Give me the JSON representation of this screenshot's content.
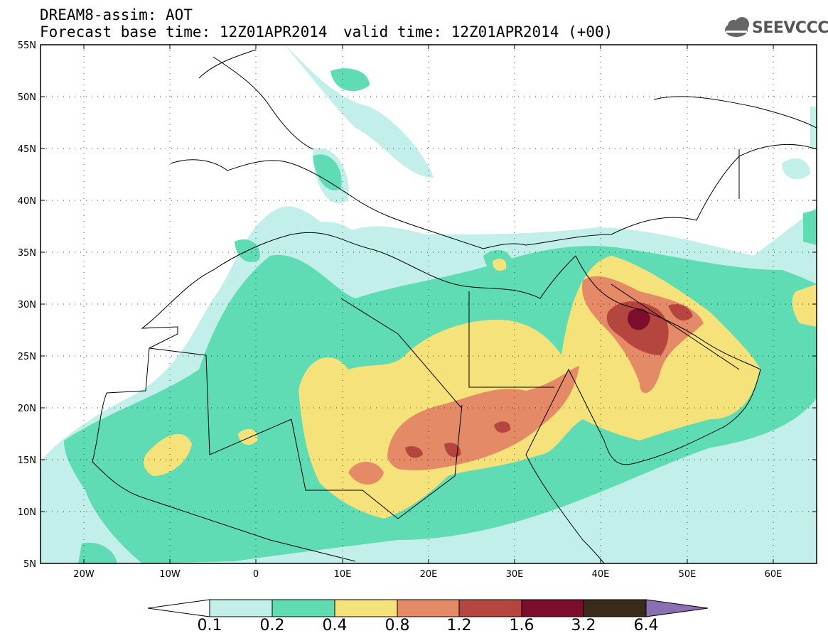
{
  "header": {
    "line1": "DREAM8-assim: AOT",
    "base_time": "Forecast base time: 12Z01APR2014",
    "valid_time": "valid time: 12Z01APR2014 (+00)"
  },
  "logo": {
    "text": "SEEVCCC",
    "icon": "cloud-icon",
    "color": "#555555"
  },
  "map": {
    "lon_range": [
      -25,
      65
    ],
    "lat_range": [
      5,
      55
    ],
    "lat_labels": [
      "55N",
      "50N",
      "45N",
      "40N",
      "35N",
      "30N",
      "25N",
      "20N",
      "15N",
      "10N",
      "5N"
    ],
    "lon_labels": [
      "20W",
      "10W",
      "0",
      "10E",
      "20E",
      "30E",
      "40E",
      "50E",
      "60E"
    ]
  },
  "colorbar": {
    "labels": [
      "0.1",
      "0.2",
      "0.4",
      "0.8",
      "1.2",
      "1.6",
      "3.2",
      "6.4"
    ],
    "colors": [
      "#ffffff",
      "#c2efe9",
      "#5fdcb4",
      "#f5e27a",
      "#e58a66",
      "#b5463f",
      "#7d0d2c",
      "#3b2a1a",
      "#8b6fb3"
    ]
  }
}
